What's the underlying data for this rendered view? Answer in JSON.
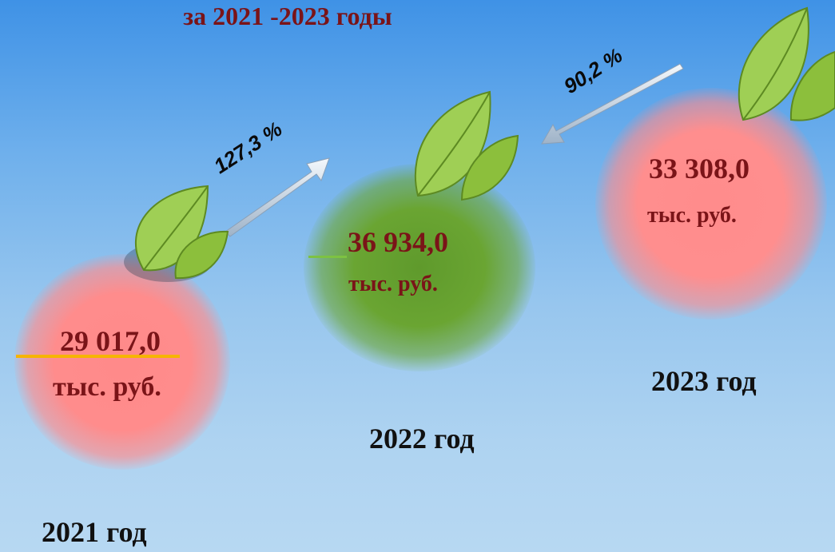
{
  "title": "за 2021 -2023 годы",
  "years": [
    {
      "label": "2021 год",
      "value": "29 017,0",
      "unit": "тыс. руб."
    },
    {
      "label": "2022 год",
      "value": "36 934,0",
      "unit": "тыс. руб."
    },
    {
      "label": "2023 год",
      "value": "33 308,0",
      "unit": "тыс. руб."
    }
  ],
  "growth": [
    {
      "label": "127,3 %"
    },
    {
      "label": "90,2 %"
    }
  ],
  "colors": {
    "text_value": "#7a1418",
    "blob_red": "#ff8c8c",
    "blob_green": "#6aa532",
    "leaf": "#8cbf3c"
  }
}
